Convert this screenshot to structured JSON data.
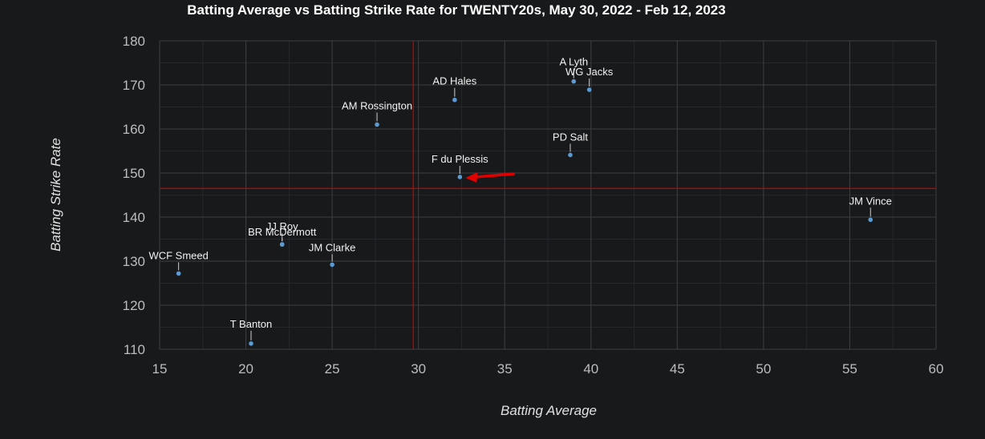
{
  "chart_data": {
    "type": "scatter",
    "title": "Batting Average vs Batting Strike Rate for TWENTY20s, May 30, 2022 - Feb 12, 2023",
    "xlabel": "Batting Average",
    "ylabel": "Batting Strike Rate",
    "xlim": [
      15,
      60
    ],
    "ylim": [
      110,
      180
    ],
    "xticks": [
      15,
      20,
      25,
      30,
      35,
      40,
      45,
      50,
      55,
      60
    ],
    "yticks": [
      110,
      120,
      130,
      140,
      150,
      160,
      170,
      180
    ],
    "grid": true,
    "reference_lines": {
      "x": 29.7,
      "y": 146.5,
      "color": "#cc0000"
    },
    "marker_color": "#5b9bd5",
    "points": [
      {
        "label": "A Lyth",
        "x": 39.0,
        "y": 170.8
      },
      {
        "label": "WG Jacks",
        "x": 39.9,
        "y": 168.9
      },
      {
        "label": "AD Hales",
        "x": 32.1,
        "y": 166.6
      },
      {
        "label": "AM Rossington",
        "x": 27.6,
        "y": 161.0
      },
      {
        "label": "PD Salt",
        "x": 38.8,
        "y": 154.1
      },
      {
        "label": "F du Plessis",
        "x": 32.4,
        "y": 149.1
      },
      {
        "label": "JM Vince",
        "x": 56.2,
        "y": 139.4
      },
      {
        "label": "JJ Roy",
        "x": 22.1,
        "y": 133.8
      },
      {
        "label": "BR McDermott",
        "x": 22.1,
        "y": 133.8
      },
      {
        "label": "JM Clarke",
        "x": 25.0,
        "y": 129.2
      },
      {
        "label": "WCF Smeed",
        "x": 16.1,
        "y": 127.2
      },
      {
        "label": "T Banton",
        "x": 20.3,
        "y": 111.3
      }
    ],
    "highlight": {
      "label": "F du Plessis",
      "arrow_color": "#e00000"
    }
  }
}
